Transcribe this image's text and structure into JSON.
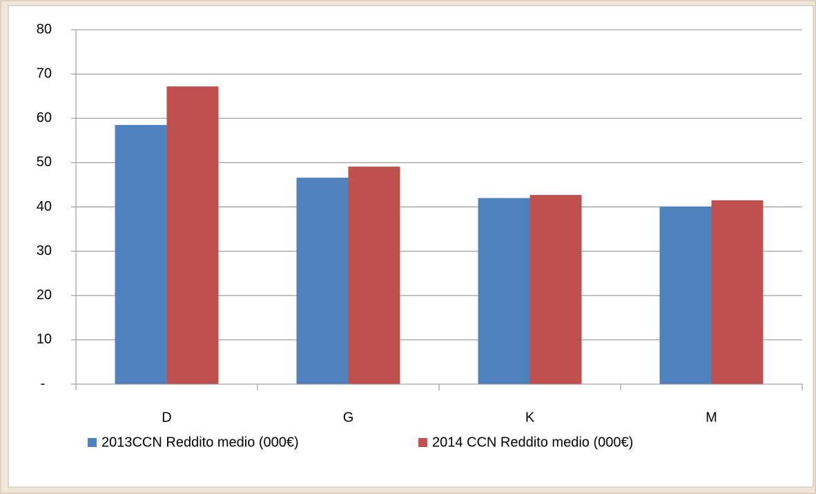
{
  "chart_data": {
    "type": "bar",
    "categories": [
      "D",
      "G",
      "K",
      "M"
    ],
    "series": [
      {
        "name": "2013CCN Reddito medio (000€)",
        "color": "#4f81bd",
        "values": [
          58.5,
          46.6,
          42.0,
          40.1
        ]
      },
      {
        "name": "2014 CCN Reddito medio (000€)",
        "color": "#c0504d",
        "values": [
          67.2,
          49.1,
          42.7,
          41.5
        ]
      }
    ],
    "ylim": [
      0,
      80
    ],
    "yticks": [
      {
        "value": 0,
        "label": "-"
      },
      10,
      20,
      30,
      40,
      50,
      60,
      70,
      80
    ],
    "grid": true,
    "legend": "bottom"
  }
}
